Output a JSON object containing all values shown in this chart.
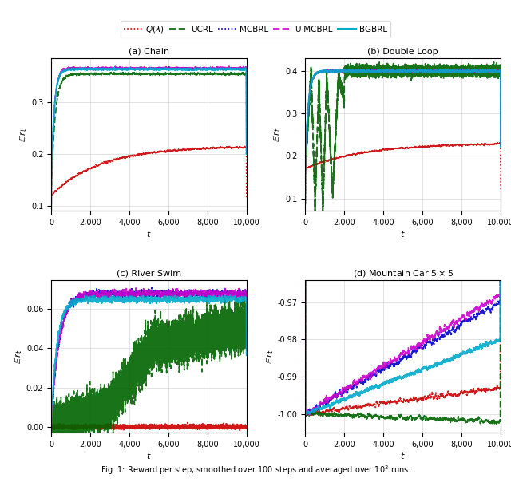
{
  "legend_labels": [
    "$Q(\\lambda)$",
    "UCRL",
    "MCBRL",
    "U-MCBRL",
    "BGBRL"
  ],
  "legend_colors": [
    "#cc0000",
    "#006400",
    "#0000cc",
    "#cc00cc",
    "#00aacc"
  ],
  "legend_styles": [
    "dotted",
    "dashed",
    "dotted",
    "dashed",
    "solid"
  ],
  "legend_widths": [
    1.2,
    1.2,
    1.2,
    1.2,
    1.5
  ],
  "caption": "Fig. 1: Reward per step, smoothed over 100 steps and averaged over $10^3$ runs.",
  "subplot_titles": [
    "(a) Chain",
    "(b) Double Loop",
    "(c) River Swim",
    "(d) Mountain Car $5\\times 5$"
  ],
  "xlabel": "$t$",
  "ylabel": "$\\mathbb{E}\\,r_t$",
  "seed": 42,
  "n_steps": 10000,
  "chain": {
    "ylim": [
      0.09,
      0.385
    ],
    "yticks": [
      0.1,
      0.2,
      0.3
    ],
    "xlim": [
      0,
      10000
    ],
    "xticks": [
      0,
      2000,
      4000,
      6000,
      8000,
      10000
    ],
    "xticklabels": [
      "0",
      "2,000",
      "4,000",
      "6,000",
      "8,000",
      "10,000"
    ]
  },
  "doubleloop": {
    "ylim": [
      0.07,
      0.43
    ],
    "yticks": [
      0.1,
      0.2,
      0.3,
      0.4
    ],
    "xlim": [
      0,
      10000
    ],
    "xticks": [
      0,
      2000,
      4000,
      6000,
      8000,
      10000
    ],
    "xticklabels": [
      "0",
      "2,000",
      "4,000",
      "6,000",
      "8,000",
      "10,000"
    ]
  },
  "riverswim": {
    "ylim": [
      -0.003,
      0.075
    ],
    "yticks": [
      0.0,
      0.02,
      0.04,
      0.06
    ],
    "xlim": [
      0,
      10000
    ],
    "xticks": [
      0,
      2000,
      4000,
      6000,
      8000,
      10000
    ],
    "xticklabels": [
      "0",
      "2,000",
      "4,000",
      "6,000",
      "8,000",
      "10,000"
    ]
  },
  "mountaincar": {
    "ylim": [
      -1.005,
      -0.964
    ],
    "yticks": [
      -1.0,
      -0.99,
      -0.98,
      -0.97
    ],
    "xlim": [
      0,
      10000
    ],
    "xticks": [
      0,
      2000,
      4000,
      6000,
      8000,
      10000
    ],
    "xticklabels": [
      "0",
      "2,000",
      "4,000",
      "6,000",
      "8,000",
      "10,000"
    ]
  }
}
